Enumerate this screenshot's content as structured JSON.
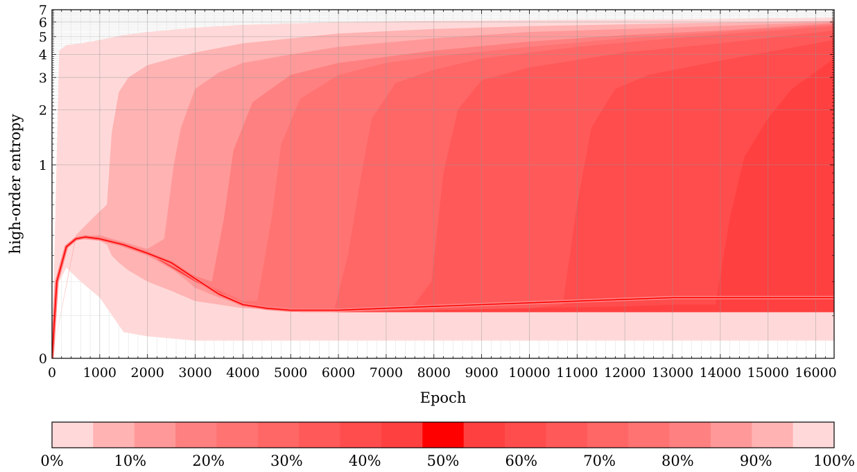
{
  "chart_data": {
    "type": "area",
    "subtype": "percentile-fan",
    "xlabel": "Epoch",
    "ylabel": "high-order entropy",
    "xlim": [
      0,
      16384
    ],
    "ylim": [
      0,
      7
    ],
    "y_scale": "asinh-like (nonlinear; ticks 0,1,2,3,4,5,6,7)",
    "xticks": [
      0,
      1000,
      2000,
      3000,
      4000,
      5000,
      6000,
      7000,
      8000,
      9000,
      10000,
      11000,
      12000,
      13000,
      14000,
      15000,
      16000
    ],
    "yticks": [
      0,
      1,
      2,
      3,
      4,
      5,
      6,
      7
    ],
    "grid": true,
    "colorbar": {
      "labels": [
        "0%",
        "10%",
        "20%",
        "30%",
        "40%",
        "50%",
        "60%",
        "70%",
        "80%",
        "90%",
        "100%"
      ],
      "colors": [
        "#ffd9d9",
        "#ffb3b3",
        "#ff9999",
        "#ff8080",
        "#ff7373",
        "#ff6666",
        "#ff5959",
        "#ff4c4c",
        "#ff4040",
        "#ff0000",
        "#ff4040",
        "#ff4c4c",
        "#ff5959",
        "#ff6666",
        "#ff7373",
        "#ff8080",
        "#ff9999",
        "#ffb3b3",
        "#ffd9d9"
      ]
    },
    "bands": [
      {
        "lo": "0%",
        "hi": "100%",
        "color": "#ffd9d9",
        "x": [
          0,
          150,
          300,
          600,
          1000,
          1500,
          2000,
          3000,
          4000,
          6000,
          8000,
          10000,
          13000,
          16384
        ],
        "upper": [
          0,
          4.2,
          4.5,
          4.6,
          4.8,
          5.1,
          5.3,
          5.6,
          5.8,
          6.0,
          6.1,
          6.15,
          6.2,
          6.35
        ],
        "lower": [
          0,
          0.2,
          0.25,
          0.2,
          0.15,
          0.06,
          0.05,
          0.04,
          0.04,
          0.04,
          0.04,
          0.04,
          0.04,
          0.04
        ]
      },
      {
        "lo": "5%",
        "hi": "95%",
        "color": "#ffb3b3",
        "x": [
          0,
          500,
          1000,
          1150,
          1250,
          1400,
          1600,
          2000,
          2500,
          3000,
          4000,
          6000,
          8000,
          10000,
          13000,
          16384
        ],
        "upper": [
          0,
          0.4,
          0.55,
          0.6,
          1.5,
          2.5,
          3.0,
          3.5,
          3.8,
          4.1,
          4.6,
          5.2,
          5.5,
          5.7,
          5.9,
          6.1
        ],
        "lower": [
          0,
          0.38,
          0.37,
          0.35,
          0.3,
          0.27,
          0.24,
          0.2,
          0.17,
          0.14,
          0.12,
          0.11,
          0.11,
          0.11,
          0.11,
          0.11
        ]
      },
      {
        "lo": "10%",
        "hi": "90%",
        "color": "#ff9999",
        "x": [
          0,
          500,
          1000,
          2000,
          2350,
          2550,
          2700,
          3000,
          3500,
          4000,
          5000,
          6000,
          8000,
          10000,
          13000,
          16384
        ],
        "upper": [
          0,
          0.39,
          0.4,
          0.33,
          0.38,
          1.0,
          1.6,
          2.6,
          3.2,
          3.6,
          4.0,
          4.4,
          4.9,
          5.3,
          5.6,
          6.0
        ],
        "lower": [
          0,
          0.39,
          0.38,
          0.3,
          0.26,
          0.24,
          0.22,
          0.18,
          0.15,
          0.13,
          0.12,
          0.11,
          0.11,
          0.11,
          0.11,
          0.11
        ]
      },
      {
        "lo": "15%",
        "hi": "85%",
        "color": "#ff8080",
        "x": [
          0,
          500,
          1000,
          2000,
          3000,
          3350,
          3600,
          3800,
          4200,
          5000,
          6000,
          8000,
          10000,
          12000,
          14000,
          16384
        ],
        "upper": [
          0,
          0.39,
          0.39,
          0.32,
          0.22,
          0.2,
          0.5,
          1.2,
          2.2,
          3.1,
          3.6,
          4.2,
          4.7,
          5.1,
          5.4,
          5.9
        ],
        "lower": [
          0,
          0.39,
          0.38,
          0.31,
          0.2,
          0.17,
          0.16,
          0.15,
          0.13,
          0.12,
          0.11,
          0.11,
          0.11,
          0.11,
          0.11,
          0.11
        ]
      },
      {
        "lo": "20%",
        "hi": "80%",
        "color": "#ff7373",
        "x": [
          0,
          1000,
          2000,
          3000,
          4000,
          4300,
          4600,
          4800,
          5200,
          6000,
          7000,
          8000,
          10000,
          12000,
          14000,
          16384
        ],
        "upper": [
          0,
          0.38,
          0.31,
          0.21,
          0.14,
          0.14,
          0.5,
          1.3,
          2.3,
          3.1,
          3.6,
          3.9,
          4.4,
          4.9,
          5.3,
          5.8
        ],
        "lower": [
          0,
          0.38,
          0.31,
          0.2,
          0.13,
          0.12,
          0.12,
          0.12,
          0.11,
          0.11,
          0.11,
          0.11,
          0.11,
          0.11,
          0.11,
          0.11
        ]
      },
      {
        "lo": "25%",
        "hi": "75%",
        "color": "#ff6666",
        "x": [
          0,
          1000,
          2000,
          3000,
          4000,
          5000,
          5900,
          6200,
          6450,
          6700,
          7200,
          8000,
          9000,
          11000,
          13000,
          16384
        ],
        "upper": [
          0,
          0.38,
          0.31,
          0.21,
          0.13,
          0.11,
          0.11,
          0.3,
          0.8,
          1.8,
          2.8,
          3.3,
          3.8,
          4.4,
          4.9,
          5.7
        ],
        "lower": [
          0,
          0.38,
          0.31,
          0.2,
          0.13,
          0.11,
          0.11,
          0.11,
          0.11,
          0.11,
          0.11,
          0.11,
          0.11,
          0.11,
          0.11,
          0.11
        ]
      },
      {
        "lo": "30%",
        "hi": "70%",
        "color": "#ff5959",
        "x": [
          0,
          1000,
          2000,
          3000,
          4000,
          5000,
          6000,
          7500,
          7950,
          8200,
          8500,
          9000,
          10000,
          12000,
          14000,
          16384
        ],
        "upper": [
          0,
          0.38,
          0.31,
          0.21,
          0.13,
          0.11,
          0.11,
          0.115,
          0.2,
          0.9,
          2.0,
          2.9,
          3.4,
          4.1,
          4.6,
          5.4
        ],
        "lower": [
          0,
          0.38,
          0.31,
          0.2,
          0.13,
          0.11,
          0.11,
          0.11,
          0.11,
          0.11,
          0.11,
          0.11,
          0.11,
          0.11,
          0.11,
          0.11
        ]
      },
      {
        "lo": "35%",
        "hi": "65%",
        "color": "#ff4c4c",
        "x": [
          0,
          1000,
          2000,
          3000,
          4000,
          5000,
          6000,
          8000,
          10000,
          10700,
          11000,
          11300,
          11800,
          12500,
          14000,
          16384
        ],
        "upper": [
          0,
          0.38,
          0.31,
          0.21,
          0.13,
          0.11,
          0.11,
          0.115,
          0.12,
          0.13,
          0.6,
          1.6,
          2.6,
          3.1,
          3.7,
          4.8
        ],
        "lower": [
          0,
          0.38,
          0.31,
          0.2,
          0.13,
          0.11,
          0.11,
          0.11,
          0.11,
          0.11,
          0.11,
          0.11,
          0.11,
          0.11,
          0.11,
          0.11
        ]
      },
      {
        "lo": "40%",
        "hi": "60%",
        "color": "#ff4040",
        "x": [
          0,
          1000,
          2000,
          3000,
          4000,
          5000,
          6000,
          8000,
          10000,
          12000,
          13000,
          13900,
          14200,
          14500,
          15000,
          15500,
          16384
        ],
        "upper": [
          0,
          0.38,
          0.31,
          0.21,
          0.13,
          0.11,
          0.11,
          0.115,
          0.12,
          0.125,
          0.13,
          0.13,
          0.5,
          1.1,
          1.8,
          2.6,
          3.8
        ],
        "lower": [
          0,
          0.38,
          0.31,
          0.2,
          0.13,
          0.11,
          0.11,
          0.11,
          0.11,
          0.11,
          0.11,
          0.11,
          0.11,
          0.11,
          0.11,
          0.11,
          0.11
        ]
      }
    ],
    "median": {
      "name": "50%",
      "color": "#ff0000",
      "x": [
        0,
        100,
        300,
        500,
        700,
        1000,
        1500,
        2000,
        2500,
        3000,
        3500,
        4000,
        4500,
        5000,
        5500,
        6000,
        7000,
        8000,
        9000,
        10000,
        11000,
        12000,
        13000,
        14000,
        15000,
        16384
      ],
      "y": [
        0,
        0.2,
        0.34,
        0.38,
        0.39,
        0.38,
        0.35,
        0.31,
        0.27,
        0.21,
        0.16,
        0.13,
        0.12,
        0.115,
        0.115,
        0.115,
        0.12,
        0.125,
        0.13,
        0.135,
        0.14,
        0.145,
        0.15,
        0.15,
        0.15,
        0.15
      ]
    }
  }
}
